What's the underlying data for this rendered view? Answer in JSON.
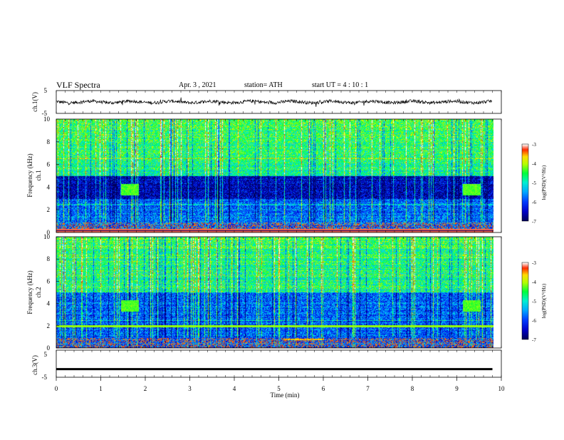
{
  "header": {
    "title": "VLF Spectra",
    "date": "Apr. 3 , 2021",
    "station": "station= ATH",
    "start": "start UT = 4 : 10 : 1"
  },
  "chart_data": [
    {
      "type": "line",
      "panel": "ch1-waveform",
      "ylabel": "ch.1(V)",
      "ylim": [
        -5,
        5
      ],
      "yticks": [
        "5",
        "-5"
      ],
      "xlim": [
        0,
        10
      ],
      "duration_min": 9.8,
      "approx_amplitude_v": [
        -1.5,
        1.5
      ]
    },
    {
      "type": "heatmap",
      "panel": "ch1-spectrogram",
      "ylabel": "ch.1 Frequency (kHz)",
      "ylim": [
        0,
        10
      ],
      "yticks": [
        "0",
        "2",
        "4",
        "6",
        "8",
        "10"
      ],
      "xlim": [
        0,
        10
      ],
      "duration_min": 9.8,
      "colorbar": {
        "label": "log(PSD)(V²/Hz)",
        "range": [
          -7,
          -3
        ],
        "ticks": [
          "-3",
          "-4",
          "-5",
          "-6",
          "-7"
        ]
      }
    },
    {
      "type": "heatmap",
      "panel": "ch2-spectrogram",
      "ylabel": "ch.2 Frequency (kHz)",
      "ylim": [
        0,
        10
      ],
      "yticks": [
        "0",
        "2",
        "4",
        "6",
        "8",
        "10"
      ],
      "xlim": [
        0,
        10
      ],
      "duration_min": 9.8,
      "colorbar": {
        "label": "log(PSD)(V²/Hz)",
        "range": [
          -7,
          -3
        ],
        "ticks": [
          "-3",
          "-4",
          "-5",
          "-6",
          "-7"
        ]
      }
    },
    {
      "type": "line",
      "panel": "ch3-waveform",
      "ylabel": "ch.3(V)",
      "ylim": [
        -5,
        5
      ],
      "yticks": [
        "5",
        "-5"
      ],
      "xlim": [
        0,
        10
      ],
      "duration_min": 9.8,
      "approx_level_v": -2
    }
  ],
  "x_axis": {
    "label": "Time (min)",
    "ticks": [
      "0",
      "1",
      "2",
      "3",
      "4",
      "5",
      "6",
      "7",
      "8",
      "9",
      "10"
    ]
  },
  "colors": {
    "colormap": [
      "#000066",
      "#0000ff",
      "#00a0ff",
      "#00ffcc",
      "#00ff00",
      "#ffff00",
      "#ff0000",
      "#ffffff"
    ]
  }
}
